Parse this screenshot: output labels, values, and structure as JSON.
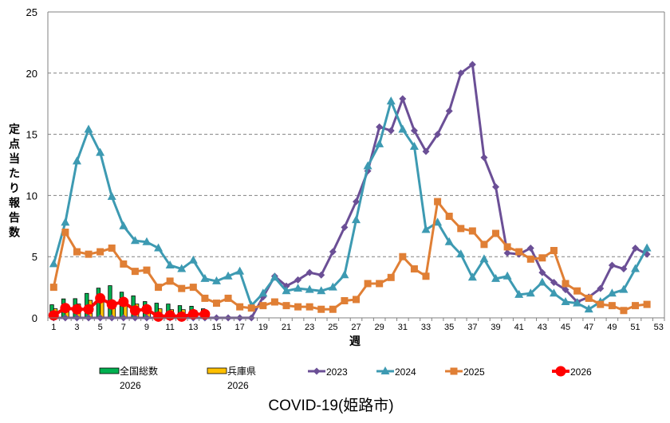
{
  "chart_data": {
    "type": "line",
    "title": "COVID-19(姫路市)",
    "xlabel": "週",
    "ylabel": "定点当たり報告数",
    "ylim": [
      0,
      25
    ],
    "yticks": [
      0,
      5,
      10,
      15,
      20,
      25
    ],
    "xticks": [
      1,
      3,
      5,
      7,
      9,
      11,
      13,
      15,
      17,
      19,
      21,
      23,
      25,
      27,
      29,
      31,
      33,
      35,
      37,
      39,
      41,
      43,
      45,
      47,
      49,
      51,
      53
    ],
    "x_categories_count": 53,
    "grid": "horizontal-dashed",
    "legend_position": "bottom",
    "bars": [
      {
        "name": "全国総数",
        "name2": "2026",
        "color": "#00b050",
        "values": [
          1.07,
          1.55,
          1.57,
          2.0,
          2.43,
          2.63,
          2.1,
          1.8,
          1.33,
          1.2,
          1.13,
          1.0,
          0.95,
          0.74
        ]
      },
      {
        "name": "兵庫県",
        "name2": "2026",
        "color": "#ffc000",
        "values": [
          0.74,
          1.04,
          1.13,
          1.43,
          1.5,
          1.3,
          1.1,
          1.13,
          0.8,
          0.74,
          0.67,
          0.67,
          0.6,
          0.3
        ]
      }
    ],
    "series": [
      {
        "name": "2023",
        "color": "#7030a0",
        "stroke": "#6b4f96",
        "marker": "diamond",
        "values": [
          0,
          0,
          0,
          0,
          0,
          0,
          0,
          0,
          0,
          0,
          0,
          0,
          0,
          0,
          0,
          0,
          0,
          0,
          1.7,
          3.4,
          2.6,
          3.1,
          3.7,
          3.5,
          5.4,
          7.4,
          9.5,
          12.0,
          15.6,
          15.3,
          17.9,
          15.3,
          13.6,
          15.0,
          16.9,
          20.0,
          20.7,
          13.1,
          10.7,
          5.3,
          5.2,
          5.7,
          3.7,
          2.9,
          2.3,
          1.3,
          1.7,
          2.4,
          4.3,
          4.0,
          5.7,
          5.2
        ]
      },
      {
        "name": "2024",
        "color": "#3d9ab2",
        "stroke": "#3d9ab2",
        "marker": "triangle",
        "values": [
          4.4,
          7.8,
          12.8,
          15.4,
          13.5,
          9.9,
          7.5,
          6.3,
          6.2,
          5.7,
          4.3,
          4.0,
          4.7,
          3.2,
          3.0,
          3.4,
          3.8,
          1.0,
          2.0,
          3.3,
          2.2,
          2.4,
          2.3,
          2.2,
          2.5,
          3.5,
          8.0,
          12.4,
          14.2,
          17.7,
          15.4,
          14.0,
          7.2,
          7.8,
          6.2,
          5.2,
          3.3,
          4.8,
          3.2,
          3.4,
          1.9,
          2.0,
          2.9,
          2.0,
          1.3,
          1.2,
          0.7,
          1.3,
          2.0,
          2.3,
          4.0,
          5.7
        ]
      },
      {
        "name": "2025",
        "color": "#e07f35",
        "stroke": "#e07f35",
        "marker": "square",
        "values": [
          2.5,
          7.0,
          5.4,
          5.2,
          5.4,
          5.7,
          4.4,
          3.8,
          3.9,
          2.5,
          3.0,
          2.4,
          2.5,
          1.6,
          1.2,
          1.6,
          0.9,
          0.8,
          1.0,
          1.3,
          1.0,
          0.9,
          0.9,
          0.7,
          0.7,
          1.4,
          1.5,
          2.8,
          2.8,
          3.3,
          5.0,
          4.0,
          3.4,
          9.5,
          8.3,
          7.3,
          7.1,
          6.0,
          6.9,
          5.8,
          5.4,
          4.8,
          4.9,
          5.5,
          2.8,
          2.2,
          1.6,
          1.1,
          1.0,
          0.6,
          1.0,
          1.1
        ]
      },
      {
        "name": "2026",
        "color": "#ff0000",
        "stroke": "#ff0000",
        "marker": "circle",
        "values": [
          0.2,
          0.8,
          0.7,
          0.7,
          1.6,
          1.1,
          1.3,
          0.6,
          0.7,
          0.1,
          0.2,
          0.1,
          0.3,
          0.3
        ]
      }
    ]
  }
}
